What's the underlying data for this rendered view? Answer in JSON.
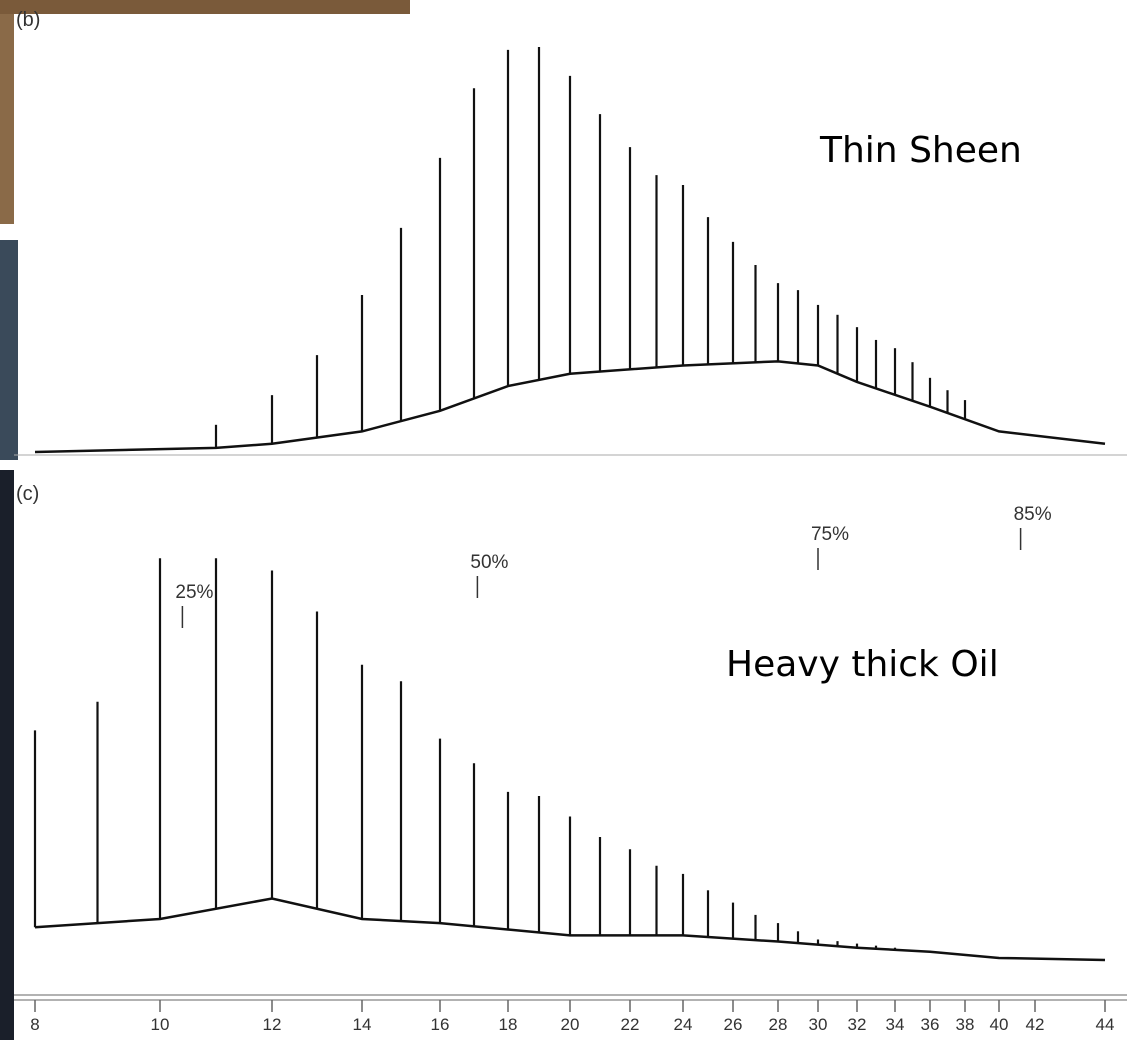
{
  "chart_data": [
    {
      "type": "chromatogram",
      "label": "(b)",
      "annotation": "Thin Sheen",
      "color": "#111111",
      "ylim": [
        0,
        100
      ],
      "peaks": {
        "x": [
          11,
          12,
          13,
          14,
          15,
          16,
          17,
          18,
          19,
          20,
          21,
          22,
          23,
          24,
          25,
          26,
          27,
          28,
          29,
          30,
          31,
          32,
          33,
          34,
          35,
          36,
          37,
          38
        ],
        "values": [
          6.6,
          13.8,
          23.5,
          38.1,
          54.4,
          71.4,
          88.3,
          97.6,
          98.3,
          91.3,
          82.0,
          74.0,
          67.2,
          64.8,
          57.0,
          51.0,
          45.4,
          41.0,
          39.3,
          35.7,
          33.3,
          30.3,
          27.2,
          25.2,
          21.8,
          18.0,
          15.0,
          12.6
        ]
      },
      "baseline": {
        "x": [
          8,
          11,
          12,
          14,
          16,
          18,
          20,
          24,
          28,
          30,
          32,
          36,
          40,
          44
        ],
        "values": [
          0,
          1,
          2,
          5,
          10,
          16,
          19,
          21,
          22,
          21,
          17,
          11,
          5,
          2
        ]
      }
    },
    {
      "type": "chromatogram",
      "label": "(c)",
      "annotation": "Heavy thick Oil",
      "color": "#111111",
      "ylim": [
        0,
        100
      ],
      "peaks": {
        "x": [
          8,
          9,
          10,
          11,
          12,
          13,
          14,
          15,
          16,
          17,
          18,
          19,
          20,
          21,
          22,
          23,
          24,
          25,
          26,
          27,
          28,
          29,
          30,
          31,
          32,
          33,
          34
        ],
        "values": [
          56,
          63,
          98,
          98,
          95,
          85,
          72,
          68,
          54,
          48,
          41,
          40,
          35,
          30,
          27,
          23,
          21,
          17,
          14,
          11,
          9,
          7,
          5,
          4.6,
          4,
          3.5,
          3
        ]
      },
      "baseline": {
        "x": [
          8,
          10,
          12,
          14,
          16,
          20,
          24,
          28,
          32,
          36,
          40,
          44
        ],
        "values": [
          8,
          10,
          15,
          10,
          9,
          6,
          6,
          4.5,
          3,
          2,
          0.5,
          0
        ]
      },
      "markers": [
        {
          "label": "25%",
          "x": 10.4
        },
        {
          "label": "50%",
          "x": 17.1
        },
        {
          "label": "75%",
          "x": 30
        },
        {
          "label": "85%",
          "x": 41.2
        }
      ],
      "xticks": [
        8,
        10,
        12,
        14,
        16,
        18,
        20,
        22,
        24,
        26,
        28,
        30,
        32,
        34,
        36,
        38,
        40,
        42,
        44
      ]
    }
  ]
}
